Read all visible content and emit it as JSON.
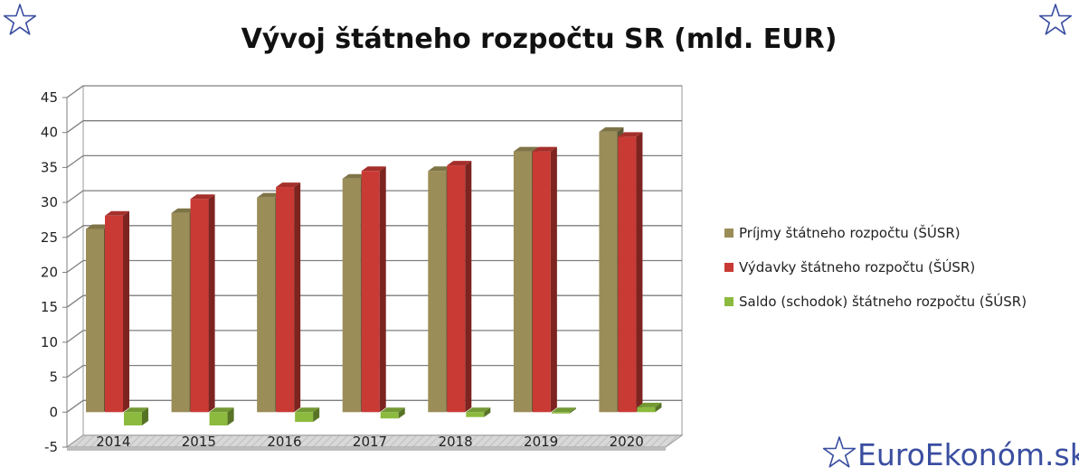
{
  "brand": {
    "text": "EuroEkonóm.sk"
  },
  "colors": {
    "income": "#9b8d57",
    "expense": "#c93a34",
    "balance": "#8cba3e",
    "brand": "#3a4ea0",
    "grid": "#808080"
  },
  "chart_data": {
    "type": "bar",
    "title": "Vývoj štátneho rozpočtu SR (mld. EUR)",
    "categories": [
      "2014",
      "2015",
      "2016",
      "2017",
      "2018",
      "2019",
      "2020"
    ],
    "series": [
      {
        "name": "Príjmy štátneho rozpočtu (ŠÚSR)",
        "color": "#9b8d57",
        "values": [
          26.2,
          28.5,
          30.7,
          33.4,
          34.5,
          37.3,
          40.1
        ]
      },
      {
        "name": "Výdavky štátneho rozpočtu (ŠÚSR)",
        "color": "#c93a34",
        "values": [
          28.1,
          30.5,
          32.2,
          34.5,
          35.3,
          37.3,
          39.4
        ]
      },
      {
        "name": "Saldo (schodok) štátneho rozpočtu (ŠÚSR)",
        "color": "#8cba3e",
        "values": [
          -1.9,
          -1.9,
          -1.4,
          -0.9,
          -0.7,
          -0.1,
          0.7
        ]
      }
    ],
    "yticks": [
      "45",
      "40",
      "35",
      "30",
      "25",
      "20",
      "15",
      "10",
      "5",
      "0",
      "-5"
    ],
    "ylim": [
      -5,
      45
    ],
    "grid": true,
    "legend_position": "right",
    "style": "3d-clustered-column"
  }
}
